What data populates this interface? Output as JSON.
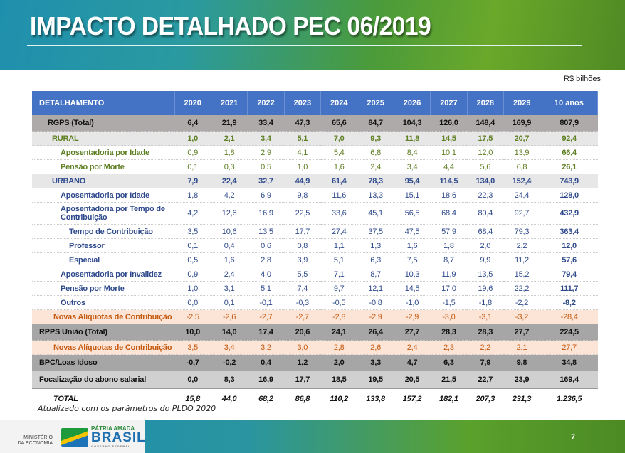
{
  "title": "IMPACTO DETALHADO PEC 06/2019",
  "unit": "R$ bilhões",
  "table": {
    "headers": [
      "DETALHAMENTO",
      "2020",
      "2021",
      "2022",
      "2023",
      "2024",
      "2025",
      "2026",
      "2027",
      "2028",
      "2029",
      "10 anos"
    ],
    "rows": [
      {
        "label": "RGPS (Total)",
        "values": [
          "6,4",
          "21,9",
          "33,4",
          "47,3",
          "65,6",
          "84,7",
          "104,3",
          "126,0",
          "148,4",
          "169,9",
          "807,9"
        ]
      },
      {
        "label": "RURAL",
        "values": [
          "1,0",
          "2,1",
          "3,4",
          "5,1",
          "7,0",
          "9,3",
          "11,8",
          "14,5",
          "17,5",
          "20,7",
          "92,4"
        ]
      },
      {
        "label": "Aposentadoria por Idade",
        "values": [
          "0,9",
          "1,8",
          "2,9",
          "4,1",
          "5,4",
          "6,8",
          "8,4",
          "10,1",
          "12,0",
          "13,9",
          "66,4"
        ]
      },
      {
        "label": "Pensão por Morte",
        "values": [
          "0,1",
          "0,3",
          "0,5",
          "1,0",
          "1,6",
          "2,4",
          "3,4",
          "4,4",
          "5,6",
          "6,8",
          "26,1"
        ]
      },
      {
        "label": "URBANO",
        "values": [
          "7,9",
          "22,4",
          "32,7",
          "44,9",
          "61,4",
          "78,3",
          "95,4",
          "114,5",
          "134,0",
          "152,4",
          "743,9"
        ]
      },
      {
        "label": "Aposentadoria por Idade",
        "values": [
          "1,8",
          "4,2",
          "6,9",
          "9,8",
          "11,6",
          "13,3",
          "15,1",
          "18,6",
          "22,3",
          "24,4",
          "128,0"
        ]
      },
      {
        "label": "Aposentadoria por Tempo de Contribuição",
        "values": [
          "4,2",
          "12,6",
          "16,9",
          "22,5",
          "33,6",
          "45,1",
          "56,5",
          "68,4",
          "80,4",
          "92,7",
          "432,9"
        ]
      },
      {
        "label": "Tempo de Contribuição",
        "values": [
          "3,5",
          "10,6",
          "13,5",
          "17,7",
          "27,4",
          "37,5",
          "47,5",
          "57,9",
          "68,4",
          "79,3",
          "363,4"
        ]
      },
      {
        "label": "Professor",
        "values": [
          "0,1",
          "0,4",
          "0,6",
          "0,8",
          "1,1",
          "1,3",
          "1,6",
          "1,8",
          "2,0",
          "2,2",
          "12,0"
        ]
      },
      {
        "label": "Especial",
        "values": [
          "0,5",
          "1,6",
          "2,8",
          "3,9",
          "5,1",
          "6,3",
          "7,5",
          "8,7",
          "9,9",
          "11,2",
          "57,6"
        ]
      },
      {
        "label": "Aposentadoria por Invalidez",
        "values": [
          "0,9",
          "2,4",
          "4,0",
          "5,5",
          "7,1",
          "8,7",
          "10,3",
          "11,9",
          "13,5",
          "15,2",
          "79,4"
        ]
      },
      {
        "label": "Pensão por Morte",
        "values": [
          "1,0",
          "3,1",
          "5,1",
          "7,4",
          "9,7",
          "12,1",
          "14,5",
          "17,0",
          "19,6",
          "22,2",
          "111,7"
        ]
      },
      {
        "label": "Outros",
        "values": [
          "0,0",
          "0,1",
          "-0,1",
          "-0,3",
          "-0,5",
          "-0,8",
          "-1,0",
          "-1,5",
          "-1,8",
          "-2,2",
          "-8,2"
        ]
      },
      {
        "label": "Novas Alíquotas de Contribuição",
        "values": [
          "-2,5",
          "-2,6",
          "-2,7",
          "-2,7",
          "-2,8",
          "-2,9",
          "-2,9",
          "-3,0",
          "-3,1",
          "-3,2",
          "-28,4"
        ]
      },
      {
        "label": "RPPS União (Total)",
        "values": [
          "10,0",
          "14,0",
          "17,4",
          "20,6",
          "24,1",
          "26,4",
          "27,7",
          "28,3",
          "28,3",
          "27,7",
          "224,5"
        ]
      },
      {
        "label": "Novas Alíquotas de Contribuição",
        "values": [
          "3,5",
          "3,4",
          "3,2",
          "3,0",
          "2,8",
          "2,6",
          "2,4",
          "2,3",
          "2,2",
          "2,1",
          "27,7"
        ]
      },
      {
        "label": "BPC/Loas Idoso",
        "values": [
          "-0,7",
          "-0,2",
          "0,4",
          "1,2",
          "2,0",
          "3,3",
          "4,7",
          "6,3",
          "7,9",
          "9,8",
          "34,8"
        ]
      },
      {
        "label": "Focalização do abono salarial",
        "values": [
          "0,0",
          "8,3",
          "16,9",
          "17,7",
          "18,5",
          "19,5",
          "20,5",
          "21,5",
          "22,7",
          "23,9",
          "169,4"
        ]
      },
      {
        "label": "TOTAL",
        "values": [
          "15,8",
          "44,0",
          "68,2",
          "86,8",
          "110,2",
          "133,8",
          "157,2",
          "182,1",
          "207,3",
          "231,3",
          "1.236,5"
        ]
      }
    ]
  },
  "footnote": "Atualizado com os parâmetros do PLDO 2020",
  "footer": {
    "ministry": "MINISTÉRIO DA ECONOMIA",
    "brand_top": "PÁTRIA AMADA",
    "brand_main": "BRASIL",
    "brand_sub": "GOVERNO FEDERAL",
    "page_number": "7"
  }
}
